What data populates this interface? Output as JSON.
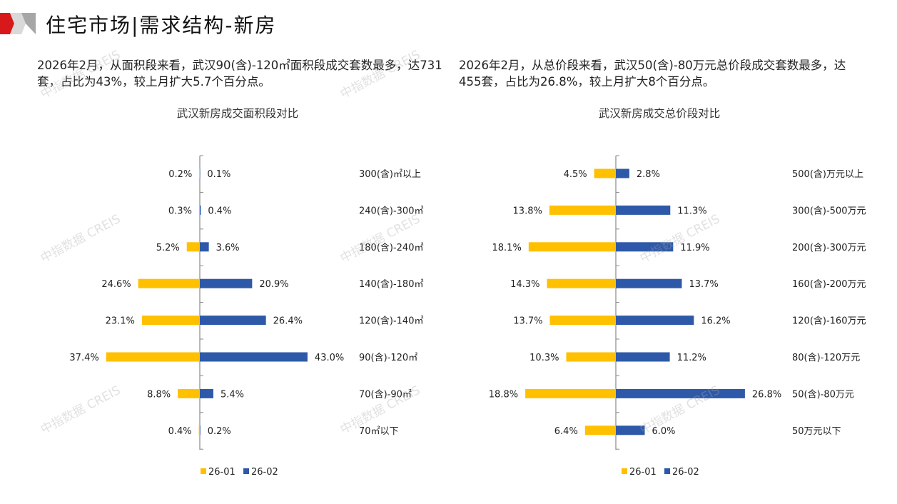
{
  "header": {
    "title": "住宅市场|需求结构-新房",
    "brand_colors": [
      "#d7191c",
      "#b0b0b0"
    ]
  },
  "watermark": "中指数据 CREIS",
  "colors": {
    "s1": "#FFC000",
    "s2": "#2E59A8"
  },
  "left": {
    "description": "2026年2月，从面积段来看，武汉90(含)-120㎡面积段成交套数最多，达731套，占比为43%，较上月扩大5.7个百分点。"
  },
  "right": {
    "description": "2026年2月，从总价段来看，武汉50(含)-80万元总价段成交套数最多，达455套，占比为26.8%，较上月扩大8个百分点。"
  },
  "chart_data": [
    {
      "type": "bar",
      "orientation": "horizontal-butterfly",
      "title": "武汉新房成交面积段对比",
      "categories": [
        "300(含)㎡以上",
        "240(含)-300㎡",
        "180(含)-240㎡",
        "140(含)-180㎡",
        "120(含)-140㎡",
        "90(含)-120㎡",
        "70(含)-90㎡",
        "70㎡以下"
      ],
      "series": [
        {
          "name": "26-01",
          "values": [
            0.2,
            0.3,
            5.2,
            24.6,
            23.1,
            37.4,
            8.8,
            0.4
          ]
        },
        {
          "name": "26-02",
          "values": [
            0.1,
            0.4,
            3.6,
            20.9,
            26.4,
            43.0,
            5.4,
            0.2
          ]
        }
      ],
      "unit": "%",
      "legend": "bottom"
    },
    {
      "type": "bar",
      "orientation": "horizontal-butterfly",
      "title": "武汉新房成交总价段对比",
      "categories": [
        "500(含)万元以上",
        "300(含)-500万元",
        "200(含)-300万元",
        "160(含)-200万元",
        "120(含)-160万元",
        "80(含)-120万元",
        "50(含)-80万元",
        "50万元以下"
      ],
      "series": [
        {
          "name": "26-01",
          "values": [
            4.5,
            13.8,
            18.1,
            14.3,
            13.7,
            10.3,
            18.8,
            6.4
          ]
        },
        {
          "name": "26-02",
          "values": [
            2.8,
            11.3,
            11.9,
            13.7,
            16.2,
            11.2,
            26.8,
            6.0
          ]
        }
      ],
      "unit": "%",
      "legend": "bottom"
    }
  ]
}
